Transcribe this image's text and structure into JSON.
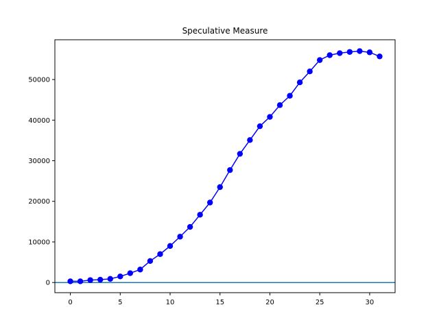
{
  "chart_data": {
    "type": "line",
    "title": "Speculative Measure",
    "xlabel": "",
    "ylabel": "",
    "xlim": [
      -1.55,
      32.55
    ],
    "ylim": [
      -2500,
      59800
    ],
    "xticks": [
      0,
      5,
      10,
      15,
      20,
      25,
      30
    ],
    "yticks": [
      0,
      10000,
      20000,
      30000,
      40000,
      50000
    ],
    "grid": false,
    "series": [
      {
        "color": "#0000ff",
        "marker": "circle",
        "x": [
          0,
          1,
          2,
          3,
          4,
          5,
          6,
          7,
          8,
          9,
          10,
          11,
          12,
          13,
          14,
          15,
          16,
          17,
          18,
          19,
          20,
          21,
          22,
          23,
          24,
          25,
          26,
          27,
          28,
          29,
          30,
          31
        ],
        "y": [
          300,
          300,
          600,
          700,
          900,
          1500,
          2300,
          3200,
          5300,
          7000,
          9000,
          11300,
          13700,
          16700,
          19700,
          23500,
          27700,
          31700,
          35100,
          38500,
          40800,
          43700,
          46000,
          49300,
          52000,
          54800,
          56000,
          56500,
          56800,
          57000,
          56700,
          55700
        ]
      }
    ],
    "hlines": [
      {
        "y": 0,
        "color": "#1f77b4"
      }
    ]
  }
}
